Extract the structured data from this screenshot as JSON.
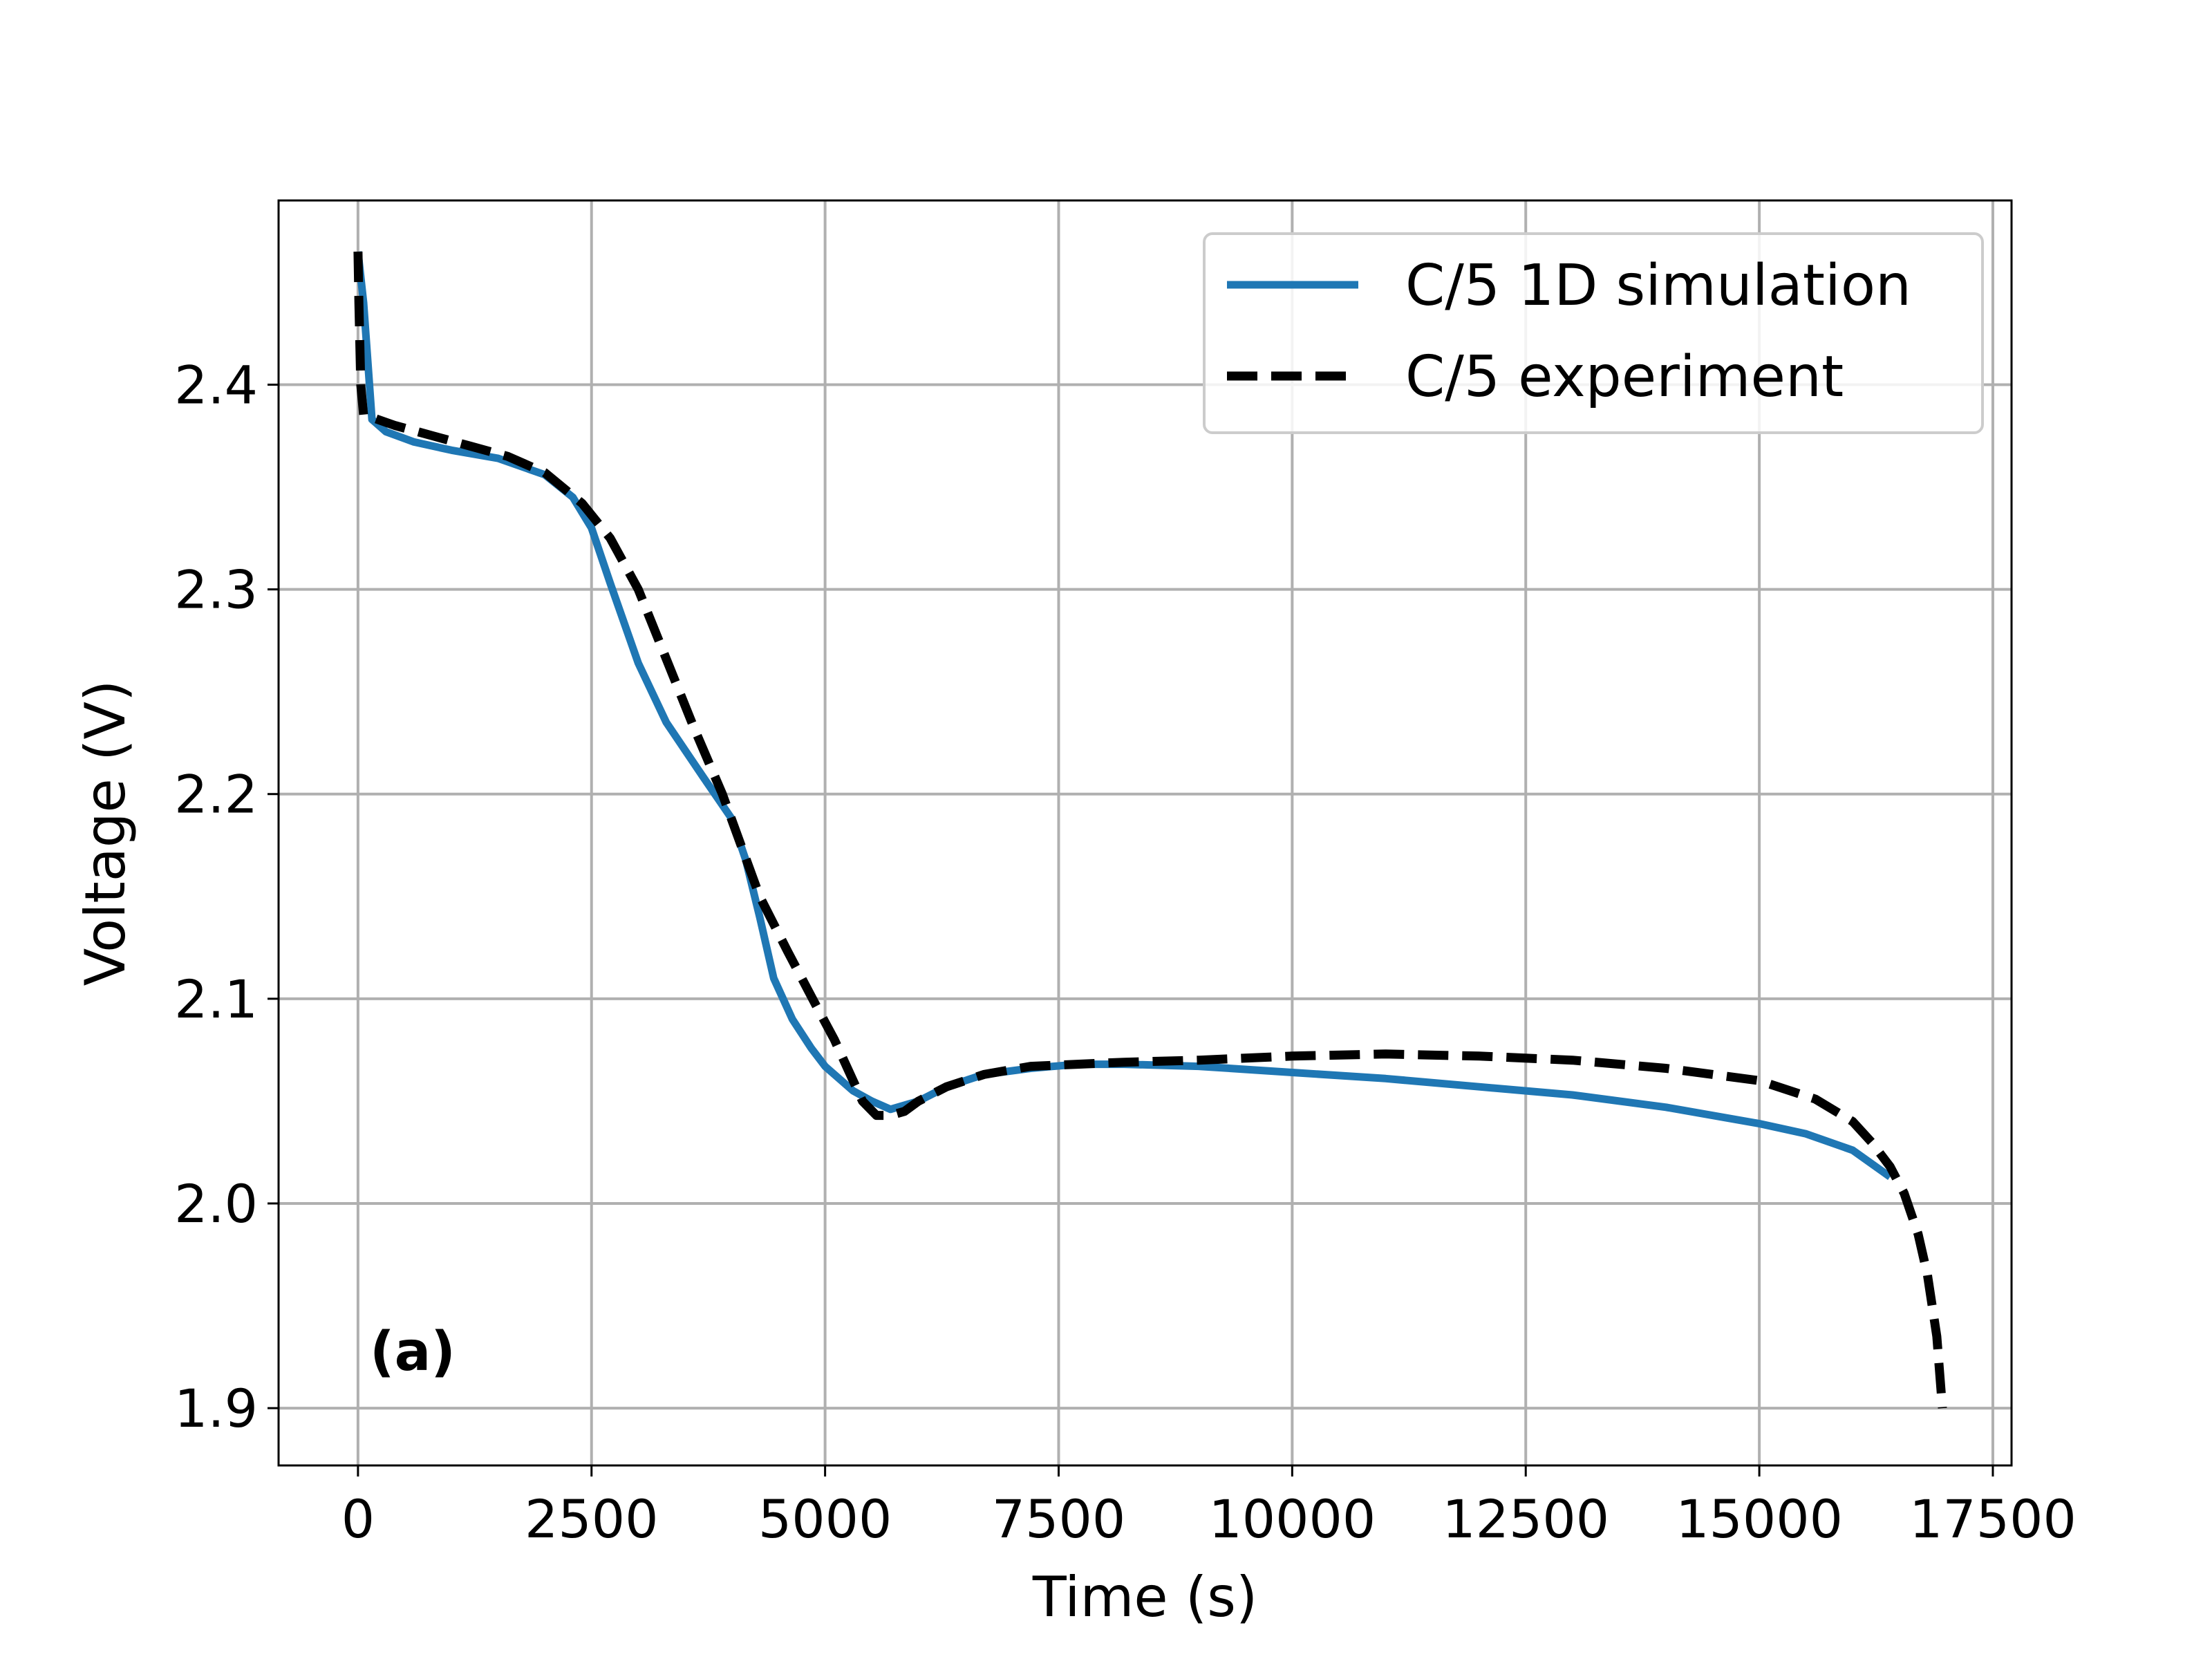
{
  "chart_data": {
    "type": "line",
    "title": "",
    "xlabel": "Time (s)",
    "ylabel": "Voltage (V)",
    "xlim": [
      -850,
      17700
    ],
    "ylim": [
      1.872,
      2.49
    ],
    "x_ticks": [
      0,
      2500,
      5000,
      7500,
      10000,
      12500,
      15000,
      17500
    ],
    "x_tick_labels": [
      "0",
      "2500",
      "5000",
      "7500",
      "10000",
      "12500",
      "15000",
      "17500"
    ],
    "y_ticks": [
      1.9,
      2.0,
      2.1,
      2.2,
      2.3,
      2.4
    ],
    "y_tick_labels": [
      "1.9",
      "2.0",
      "2.1",
      "2.2",
      "2.3",
      "2.4"
    ],
    "grid": true,
    "legend_position": "top-right",
    "annotation": "(a)",
    "series": [
      {
        "name": "C/5 1D simulation",
        "color": "#1f77b4",
        "style": "solid",
        "x": [
          0,
          60,
          150,
          300,
          600,
          1000,
          1500,
          2000,
          2300,
          2500,
          2700,
          3000,
          3300,
          3700,
          4000,
          4150,
          4300,
          4450,
          4650,
          4850,
          5000,
          5300,
          5500,
          5700,
          6000,
          6300,
          6700,
          7200,
          7700,
          8200,
          9000,
          10000,
          11000,
          12000,
          13000,
          14000,
          15000,
          15500,
          16000,
          16400
        ],
        "y": [
          2.465,
          2.44,
          2.383,
          2.377,
          2.372,
          2.368,
          2.364,
          2.356,
          2.345,
          2.33,
          2.303,
          2.264,
          2.235,
          2.208,
          2.188,
          2.168,
          2.14,
          2.11,
          2.09,
          2.076,
          2.067,
          2.055,
          2.05,
          2.046,
          2.05,
          2.057,
          2.063,
          2.066,
          2.068,
          2.068,
          2.067,
          2.064,
          2.061,
          2.057,
          2.053,
          2.047,
          2.039,
          2.034,
          2.026,
          2.013
        ]
      },
      {
        "name": "C/5 experiment",
        "color": "#000000",
        "style": "dashed",
        "x": [
          0,
          10,
          30,
          60,
          150,
          400,
          800,
          1200,
          1600,
          2000,
          2400,
          2700,
          3000,
          3300,
          3600,
          3900,
          4100,
          4300,
          4600,
          4900,
          5100,
          5250,
          5400,
          5550,
          5700,
          5850,
          6000,
          6300,
          6700,
          7200,
          7700,
          8200,
          9000,
          10000,
          11000,
          12000,
          13000,
          14000,
          15000,
          15600,
          16000,
          16200,
          16400,
          16550,
          16700,
          16800,
          16900,
          16960
        ],
        "y": [
          2.465,
          2.44,
          2.4,
          2.385,
          2.384,
          2.38,
          2.375,
          2.37,
          2.365,
          2.357,
          2.342,
          2.325,
          2.3,
          2.266,
          2.232,
          2.2,
          2.175,
          2.15,
          2.123,
          2.097,
          2.08,
          2.065,
          2.05,
          2.043,
          2.043,
          2.045,
          2.05,
          2.057,
          2.063,
          2.067,
          2.068,
          2.069,
          2.07,
          2.072,
          2.073,
          2.072,
          2.07,
          2.066,
          2.06,
          2.051,
          2.04,
          2.03,
          2.018,
          2.005,
          1.985,
          1.965,
          1.935,
          1.9
        ]
      }
    ]
  }
}
